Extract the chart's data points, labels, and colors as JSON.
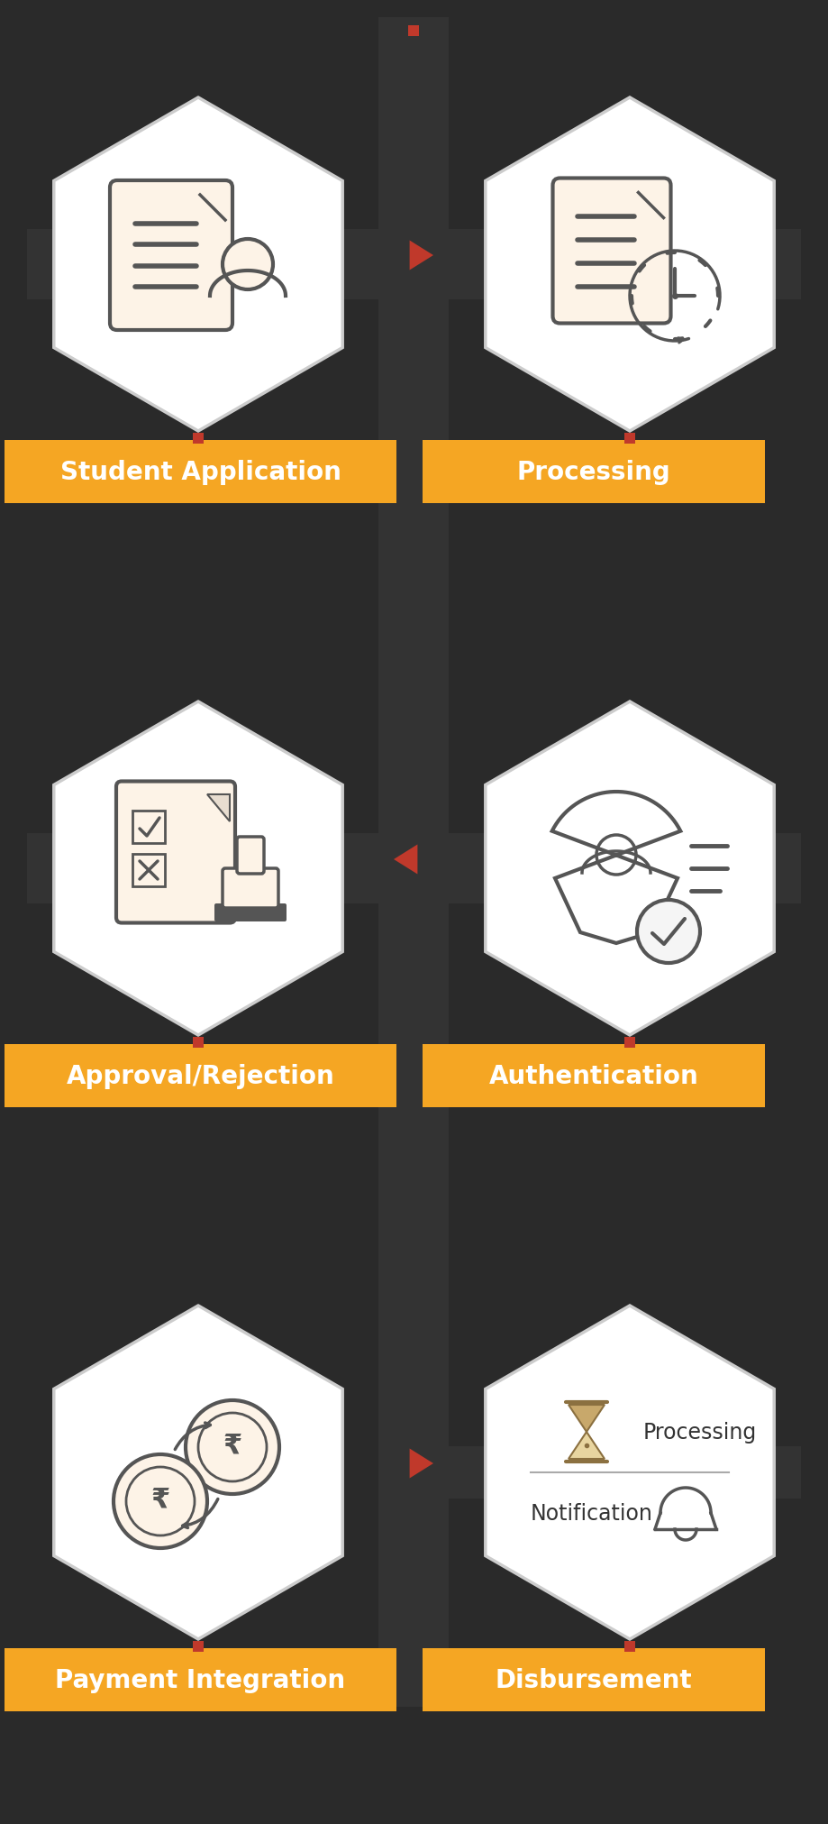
{
  "bg_color": "#2a2a2a",
  "orange": "#F5A623",
  "red_sq": "#C0392B",
  "arrow_red": "#C0392B",
  "hex_fill": "#FFFFFF",
  "hex_stroke": "#CCCCCC",
  "stem_color": "#333333",
  "icon_color": "#555555",
  "icon_bg": "#FDF3E7",
  "label_text_color": "#FFFFFF",
  "labels": [
    "Student Application",
    "Processing",
    "Approval/Rejection",
    "Authentication",
    "Payment Integration",
    "Disbursement"
  ],
  "figsize": [
    9.19,
    20.24
  ],
  "dpi": 100
}
